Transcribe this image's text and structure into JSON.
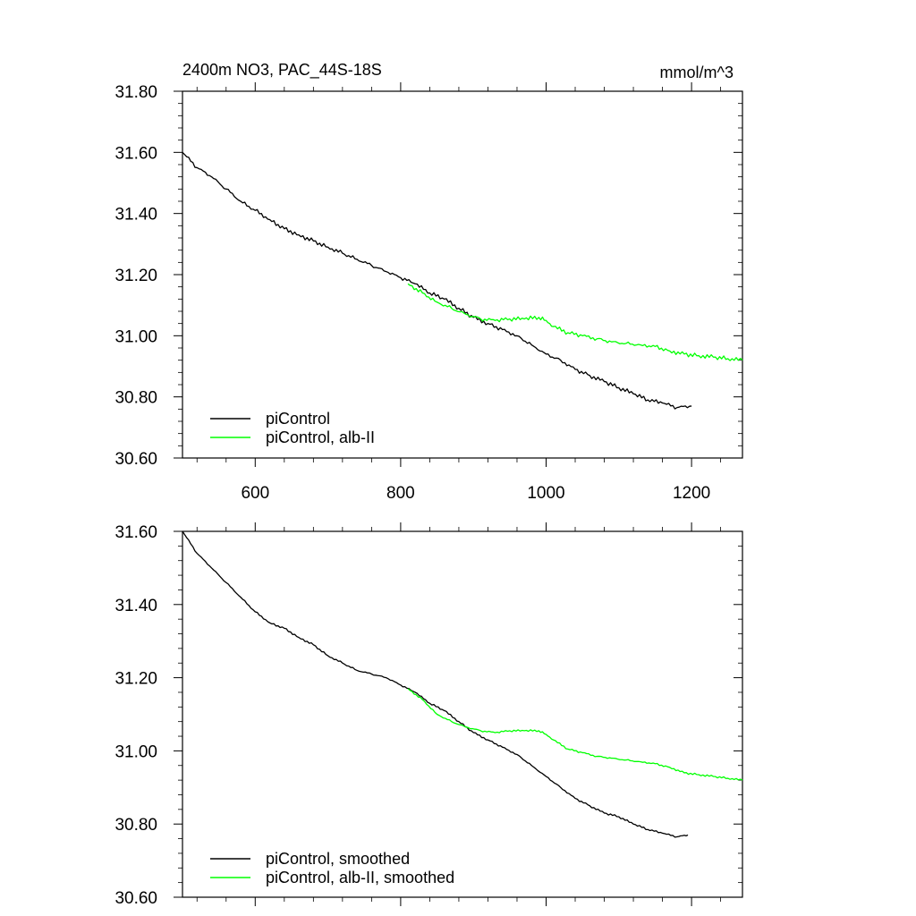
{
  "title_left": "2400m NO3, PAC_44S-18S",
  "title_right": "mmol/m^3",
  "colors": {
    "control": "#000000",
    "experiment": "#00ff00",
    "frame": "#000000"
  },
  "chart_data": [
    {
      "type": "line",
      "title": "2400m NO3, PAC_44S-18S",
      "units": "mmol/m^3",
      "xlim": [
        500,
        1270
      ],
      "ylim": [
        30.6,
        31.8
      ],
      "x_ticks": [
        600,
        800,
        1000,
        1200
      ],
      "x_tick_labels": [
        "600",
        "800",
        "1000",
        "1200"
      ],
      "y_ticks": [
        30.6,
        30.8,
        31.0,
        31.2,
        31.4,
        31.6,
        31.8
      ],
      "y_tick_labels": [
        "30.60",
        "30.80",
        "31.00",
        "31.20",
        "31.40",
        "31.60",
        "31.80"
      ],
      "legend_position": "bottom-left",
      "grid": false,
      "series": [
        {
          "name": "piControl",
          "color": "#000000",
          "x": [
            500,
            520,
            540,
            560,
            580,
            600,
            620,
            640,
            660,
            680,
            700,
            720,
            740,
            760,
            780,
            800,
            820,
            840,
            860,
            880,
            900,
            920,
            940,
            960,
            980,
            1000,
            1020,
            1040,
            1060,
            1080,
            1100,
            1120,
            1140,
            1160,
            1180,
            1200
          ],
          "y": [
            31.6,
            31.55,
            31.52,
            31.48,
            31.44,
            31.41,
            31.38,
            31.35,
            31.33,
            31.31,
            31.29,
            31.27,
            31.25,
            31.23,
            31.21,
            31.19,
            31.17,
            31.14,
            31.12,
            31.09,
            31.06,
            31.04,
            31.02,
            31.0,
            30.97,
            30.94,
            30.92,
            30.89,
            30.87,
            30.85,
            30.83,
            30.81,
            30.79,
            30.78,
            30.765,
            30.77
          ]
        },
        {
          "name": "piControl, alb-II",
          "color": "#00ff00",
          "x": [
            810,
            830,
            850,
            870,
            890,
            910,
            930,
            950,
            970,
            990,
            1000,
            1010,
            1030,
            1050,
            1070,
            1090,
            1110,
            1130,
            1150,
            1170,
            1190,
            1210,
            1230,
            1250,
            1270
          ],
          "y": [
            31.17,
            31.14,
            31.11,
            31.09,
            31.07,
            31.055,
            31.05,
            31.055,
            31.055,
            31.06,
            31.05,
            31.03,
            31.01,
            31.0,
            30.99,
            30.98,
            30.975,
            30.97,
            30.965,
            30.95,
            30.94,
            30.935,
            30.93,
            30.925,
            30.92
          ]
        }
      ]
    },
    {
      "type": "line",
      "xlim": [
        500,
        1270
      ],
      "ylim": [
        30.6,
        31.6
      ],
      "x_ticks": [
        600,
        800,
        1000,
        1200
      ],
      "x_tick_labels": [],
      "y_ticks": [
        30.6,
        30.8,
        31.0,
        31.2,
        31.4,
        31.6
      ],
      "y_tick_labels": [
        "30.60",
        "30.80",
        "31.00",
        "31.20",
        "31.40",
        "31.60"
      ],
      "legend_position": "bottom-left",
      "grid": false,
      "series": [
        {
          "name": "piControl, smoothed",
          "color": "#000000",
          "x": [
            500,
            520,
            540,
            560,
            580,
            600,
            620,
            640,
            660,
            680,
            700,
            720,
            740,
            760,
            780,
            800,
            820,
            840,
            860,
            880,
            900,
            920,
            940,
            960,
            980,
            1000,
            1020,
            1040,
            1060,
            1080,
            1100,
            1120,
            1140,
            1160,
            1180,
            1195
          ],
          "y": [
            31.6,
            31.54,
            31.5,
            31.46,
            31.42,
            31.38,
            31.35,
            31.335,
            31.31,
            31.29,
            31.26,
            31.24,
            31.22,
            31.21,
            31.2,
            31.18,
            31.16,
            31.13,
            31.11,
            31.08,
            31.05,
            31.03,
            31.01,
            30.99,
            30.96,
            30.93,
            30.9,
            30.87,
            30.85,
            30.83,
            30.82,
            30.8,
            30.785,
            30.775,
            30.765,
            30.77
          ]
        },
        {
          "name": "piControl, alb-II, smoothed",
          "color": "#00ff00",
          "x": [
            810,
            830,
            850,
            870,
            890,
            910,
            930,
            950,
            970,
            990,
            1000,
            1010,
            1030,
            1050,
            1070,
            1090,
            1110,
            1130,
            1150,
            1170,
            1190,
            1210,
            1230,
            1250,
            1270
          ],
          "y": [
            31.17,
            31.14,
            31.1,
            31.08,
            31.065,
            31.055,
            31.05,
            31.055,
            31.055,
            31.055,
            31.045,
            31.03,
            31.005,
            30.995,
            30.985,
            30.98,
            30.975,
            30.97,
            30.965,
            30.955,
            30.94,
            30.935,
            30.93,
            30.925,
            30.92
          ]
        }
      ]
    }
  ]
}
